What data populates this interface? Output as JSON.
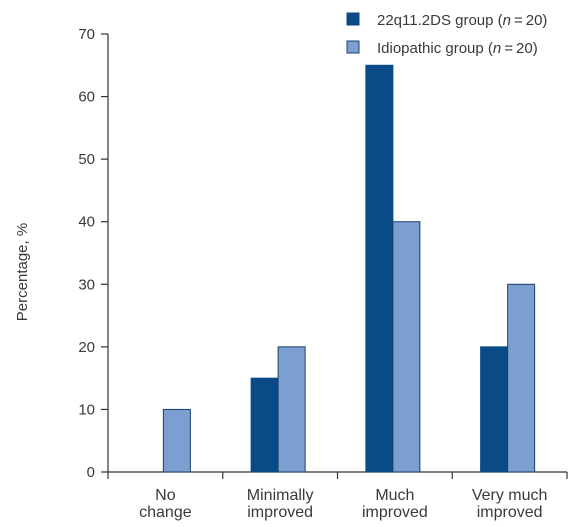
{
  "chart_data": {
    "type": "bar",
    "categories": [
      [
        "No",
        "change"
      ],
      [
        "Minimally",
        "improved"
      ],
      [
        "Much",
        "improved"
      ],
      [
        "Very much",
        "improved"
      ]
    ],
    "series": [
      {
        "name": "22q11.2DS group (",
        "name_italic": "n",
        "name_suffix": " = 20)",
        "values": [
          0,
          15,
          65,
          20
        ],
        "color": "#0a4a86"
      },
      {
        "name": "Idiopathic group (",
        "name_italic": "n",
        "name_suffix": " = 20)",
        "values": [
          10,
          20,
          40,
          30
        ],
        "color": "#7a9fd0"
      }
    ],
    "ylabel": "Percentage, %",
    "xlabel": "",
    "title": "",
    "ylim": [
      0,
      70
    ],
    "yticks": [
      0,
      10,
      20,
      30,
      40,
      50,
      60,
      70
    ],
    "legend_position": "top-right",
    "grid": false
  }
}
